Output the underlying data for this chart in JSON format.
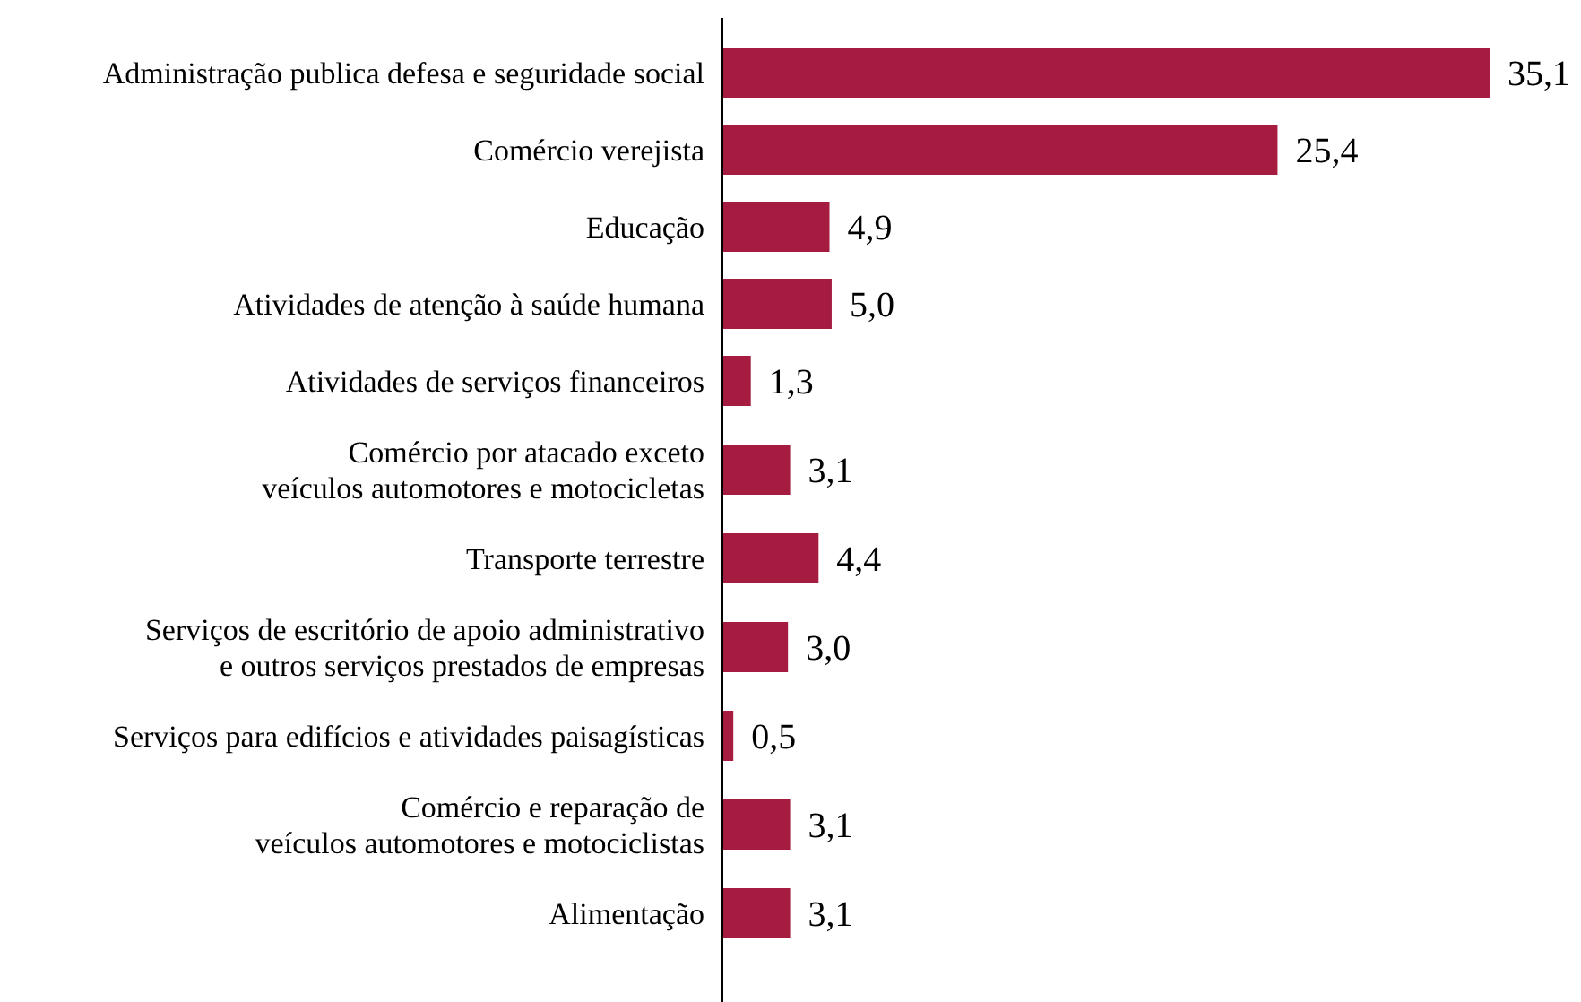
{
  "chart_data": {
    "type": "bar",
    "orientation": "horizontal",
    "categories": [
      "Administração publica defesa e seguridade social",
      "Comércio verejista",
      "Educação",
      "Atividades de atenção à saúde humana",
      "Atividades de serviços financeiros",
      "Comércio por atacado exceto\nveículos automotores e motocicletas",
      "Transporte terrestre",
      "Serviços de escritório de apoio administrativo\ne outros serviços prestados de empresas",
      "Serviços para edifícios e atividades paisagísticas",
      "Comércio e reparação de\nveículos automotores e motociclistas",
      "Alimentação"
    ],
    "values": [
      35.1,
      25.4,
      4.9,
      5.0,
      1.3,
      3.1,
      4.4,
      3.0,
      0.5,
      3.1,
      3.1
    ],
    "value_labels": [
      "35,1",
      "25,4",
      "4,9",
      "5,0",
      "1,3",
      "3,1",
      "4,4",
      "3,0",
      "0,5",
      "3,1",
      "3,1"
    ],
    "color": "#a51c40"
  }
}
